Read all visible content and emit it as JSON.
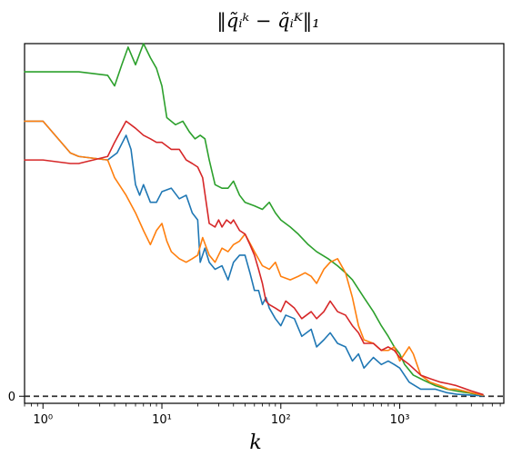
{
  "chart_data": {
    "type": "line",
    "title": "‖q̃ᵢᵏ − q̃ᵢᴷ‖₁",
    "xlabel": "k",
    "ylabel": "",
    "x_scale": "log",
    "xlim": [
      0.7,
      7500
    ],
    "ylim": [
      -0.02,
      1.0
    ],
    "x_ticks": [
      {
        "value": 1,
        "label": "10⁰"
      },
      {
        "value": 10,
        "label": "10¹"
      },
      {
        "value": 100,
        "label": "10²"
      },
      {
        "value": 1000,
        "label": "10³"
      }
    ],
    "y_ticks": [
      {
        "value": 0,
        "label": "0"
      }
    ],
    "reference_line": {
      "y": 0,
      "style": "dashed",
      "color": "#333333"
    },
    "grid": false,
    "legend": "none",
    "series": [
      {
        "color": "#2ca02c",
        "points": [
          [
            0.7,
            0.92
          ],
          [
            1,
            0.92
          ],
          [
            2,
            0.92
          ],
          [
            3.5,
            0.91
          ],
          [
            4,
            0.88
          ],
          [
            4.6,
            0.94
          ],
          [
            5.2,
            0.99
          ],
          [
            6,
            0.94
          ],
          [
            7,
            1.0
          ],
          [
            8,
            0.96
          ],
          [
            9,
            0.93
          ],
          [
            10,
            0.88
          ],
          [
            11,
            0.79
          ],
          [
            13,
            0.77
          ],
          [
            15,
            0.78
          ],
          [
            17,
            0.75
          ],
          [
            19,
            0.73
          ],
          [
            21,
            0.74
          ],
          [
            23,
            0.73
          ],
          [
            25,
            0.67
          ],
          [
            28,
            0.6
          ],
          [
            32,
            0.59
          ],
          [
            36,
            0.59
          ],
          [
            40,
            0.61
          ],
          [
            45,
            0.57
          ],
          [
            50,
            0.55
          ],
          [
            60,
            0.54
          ],
          [
            70,
            0.53
          ],
          [
            80,
            0.55
          ],
          [
            90,
            0.52
          ],
          [
            100,
            0.5
          ],
          [
            120,
            0.48
          ],
          [
            140,
            0.46
          ],
          [
            170,
            0.43
          ],
          [
            200,
            0.41
          ],
          [
            250,
            0.39
          ],
          [
            300,
            0.37
          ],
          [
            350,
            0.35
          ],
          [
            400,
            0.33
          ],
          [
            500,
            0.28
          ],
          [
            600,
            0.24
          ],
          [
            700,
            0.2
          ],
          [
            800,
            0.17
          ],
          [
            900,
            0.14
          ],
          [
            1000,
            0.12
          ],
          [
            1100,
            0.09
          ],
          [
            1300,
            0.06
          ],
          [
            1600,
            0.045
          ],
          [
            2000,
            0.03
          ],
          [
            2500,
            0.02
          ],
          [
            3000,
            0.015
          ],
          [
            4000,
            0.008
          ],
          [
            5000,
            0.003
          ]
        ]
      },
      {
        "color": "#1f77b4",
        "points": [
          [
            0.7,
            0.78
          ],
          [
            1,
            0.78
          ],
          [
            1.7,
            0.69
          ],
          [
            2,
            0.68
          ],
          [
            3.5,
            0.67
          ],
          [
            4.2,
            0.69
          ],
          [
            5,
            0.74
          ],
          [
            5.5,
            0.7
          ],
          [
            6,
            0.6
          ],
          [
            6.5,
            0.57
          ],
          [
            7,
            0.6
          ],
          [
            8,
            0.55
          ],
          [
            9,
            0.55
          ],
          [
            10,
            0.58
          ],
          [
            12,
            0.59
          ],
          [
            14,
            0.56
          ],
          [
            16,
            0.57
          ],
          [
            18,
            0.52
          ],
          [
            20,
            0.5
          ],
          [
            21,
            0.38
          ],
          [
            23,
            0.42
          ],
          [
            25,
            0.38
          ],
          [
            28,
            0.36
          ],
          [
            32,
            0.37
          ],
          [
            36,
            0.33
          ],
          [
            40,
            0.38
          ],
          [
            45,
            0.4
          ],
          [
            50,
            0.4
          ],
          [
            55,
            0.35
          ],
          [
            60,
            0.3
          ],
          [
            65,
            0.3
          ],
          [
            70,
            0.26
          ],
          [
            75,
            0.28
          ],
          [
            80,
            0.25
          ],
          [
            90,
            0.22
          ],
          [
            100,
            0.2
          ],
          [
            110,
            0.23
          ],
          [
            130,
            0.22
          ],
          [
            150,
            0.17
          ],
          [
            180,
            0.19
          ],
          [
            200,
            0.14
          ],
          [
            230,
            0.16
          ],
          [
            260,
            0.18
          ],
          [
            300,
            0.15
          ],
          [
            350,
            0.14
          ],
          [
            400,
            0.1
          ],
          [
            450,
            0.12
          ],
          [
            500,
            0.08
          ],
          [
            600,
            0.11
          ],
          [
            700,
            0.09
          ],
          [
            800,
            0.1
          ],
          [
            900,
            0.09
          ],
          [
            1000,
            0.08
          ],
          [
            1200,
            0.04
          ],
          [
            1500,
            0.02
          ],
          [
            2000,
            0.02
          ],
          [
            2500,
            0.01
          ],
          [
            3000,
            0.006
          ],
          [
            4000,
            0.003
          ],
          [
            5000,
            0.001
          ]
        ]
      },
      {
        "color": "#ff7f0e",
        "points": [
          [
            0.7,
            0.78
          ],
          [
            1,
            0.78
          ],
          [
            1.7,
            0.69
          ],
          [
            2,
            0.68
          ],
          [
            3.5,
            0.67
          ],
          [
            4,
            0.62
          ],
          [
            5,
            0.57
          ],
          [
            6,
            0.52
          ],
          [
            7,
            0.47
          ],
          [
            8,
            0.43
          ],
          [
            9,
            0.47
          ],
          [
            10,
            0.49
          ],
          [
            11,
            0.44
          ],
          [
            12,
            0.41
          ],
          [
            14,
            0.39
          ],
          [
            16,
            0.38
          ],
          [
            18,
            0.39
          ],
          [
            20,
            0.4
          ],
          [
            22,
            0.45
          ],
          [
            25,
            0.4
          ],
          [
            28,
            0.38
          ],
          [
            32,
            0.42
          ],
          [
            36,
            0.41
          ],
          [
            40,
            0.43
          ],
          [
            45,
            0.44
          ],
          [
            50,
            0.46
          ],
          [
            60,
            0.41
          ],
          [
            70,
            0.37
          ],
          [
            80,
            0.36
          ],
          [
            90,
            0.38
          ],
          [
            100,
            0.34
          ],
          [
            120,
            0.33
          ],
          [
            140,
            0.34
          ],
          [
            160,
            0.35
          ],
          [
            180,
            0.34
          ],
          [
            200,
            0.32
          ],
          [
            230,
            0.36
          ],
          [
            260,
            0.38
          ],
          [
            300,
            0.39
          ],
          [
            350,
            0.35
          ],
          [
            400,
            0.28
          ],
          [
            450,
            0.2
          ],
          [
            500,
            0.16
          ],
          [
            600,
            0.15
          ],
          [
            700,
            0.13
          ],
          [
            800,
            0.13
          ],
          [
            900,
            0.14
          ],
          [
            1000,
            0.1
          ],
          [
            1200,
            0.14
          ],
          [
            1300,
            0.12
          ],
          [
            1500,
            0.06
          ],
          [
            1800,
            0.04
          ],
          [
            2200,
            0.03
          ],
          [
            2600,
            0.02
          ],
          [
            3000,
            0.02
          ],
          [
            4000,
            0.01
          ],
          [
            5000,
            0.003
          ]
        ]
      },
      {
        "color": "#d62728",
        "points": [
          [
            0.7,
            0.67
          ],
          [
            1,
            0.67
          ],
          [
            1.7,
            0.66
          ],
          [
            2,
            0.66
          ],
          [
            3.5,
            0.68
          ],
          [
            4,
            0.72
          ],
          [
            5,
            0.78
          ],
          [
            6,
            0.76
          ],
          [
            7,
            0.74
          ],
          [
            8,
            0.73
          ],
          [
            9,
            0.72
          ],
          [
            10,
            0.72
          ],
          [
            12,
            0.7
          ],
          [
            14,
            0.7
          ],
          [
            16,
            0.67
          ],
          [
            18,
            0.66
          ],
          [
            20,
            0.65
          ],
          [
            22,
            0.62
          ],
          [
            25,
            0.49
          ],
          [
            28,
            0.48
          ],
          [
            30,
            0.5
          ],
          [
            32,
            0.48
          ],
          [
            35,
            0.5
          ],
          [
            38,
            0.49
          ],
          [
            40,
            0.5
          ],
          [
            45,
            0.47
          ],
          [
            50,
            0.46
          ],
          [
            55,
            0.43
          ],
          [
            60,
            0.4
          ],
          [
            65,
            0.36
          ],
          [
            70,
            0.32
          ],
          [
            75,
            0.27
          ],
          [
            80,
            0.26
          ],
          [
            90,
            0.25
          ],
          [
            100,
            0.24
          ],
          [
            110,
            0.27
          ],
          [
            130,
            0.25
          ],
          [
            150,
            0.22
          ],
          [
            180,
            0.24
          ],
          [
            200,
            0.22
          ],
          [
            230,
            0.24
          ],
          [
            260,
            0.27
          ],
          [
            300,
            0.24
          ],
          [
            350,
            0.23
          ],
          [
            400,
            0.2
          ],
          [
            450,
            0.18
          ],
          [
            500,
            0.15
          ],
          [
            600,
            0.15
          ],
          [
            700,
            0.13
          ],
          [
            800,
            0.14
          ],
          [
            900,
            0.13
          ],
          [
            1000,
            0.11
          ],
          [
            1200,
            0.09
          ],
          [
            1500,
            0.06
          ],
          [
            1800,
            0.05
          ],
          [
            2200,
            0.04
          ],
          [
            2600,
            0.035
          ],
          [
            3000,
            0.03
          ],
          [
            4000,
            0.015
          ],
          [
            5000,
            0.005
          ]
        ]
      }
    ]
  }
}
